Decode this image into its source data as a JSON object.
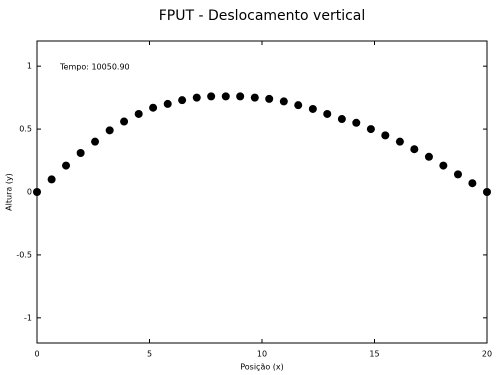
{
  "chart_data": {
    "type": "scatter",
    "title": "FPUT - Deslocamento vertical",
    "x_label": "Posição (x)",
    "y_label": "Altura (y)",
    "annotation": "Tempo: 10050.90",
    "series": [
      {
        "color": "#000000",
        "x": [
          0,
          0.65,
          1.29,
          1.94,
          2.58,
          3.23,
          3.87,
          4.52,
          5.16,
          5.81,
          6.45,
          7.1,
          7.74,
          8.39,
          9.03,
          9.68,
          10.32,
          10.97,
          11.61,
          12.26,
          12.9,
          13.55,
          14.19,
          14.84,
          15.48,
          16.13,
          16.77,
          17.42,
          18.06,
          18.71,
          19.35,
          20
        ],
        "values": [
          0,
          0.1,
          0.21,
          0.31,
          0.4,
          0.49,
          0.56,
          0.62,
          0.67,
          0.7,
          0.73,
          0.75,
          0.76,
          0.76,
          0.76,
          0.75,
          0.74,
          0.72,
          0.69,
          0.66,
          0.62,
          0.58,
          0.55,
          0.5,
          0.45,
          0.4,
          0.34,
          0.28,
          0.21,
          0.14,
          0.07,
          0
        ]
      }
    ],
    "xlim": [
      0,
      20
    ],
    "xticks": [
      0,
      5,
      10,
      15,
      20
    ],
    "ylim": [
      -1.2,
      1.2
    ],
    "yticks": [
      -1,
      -0.5,
      0,
      0.5,
      1
    ],
    "grid": false
  }
}
